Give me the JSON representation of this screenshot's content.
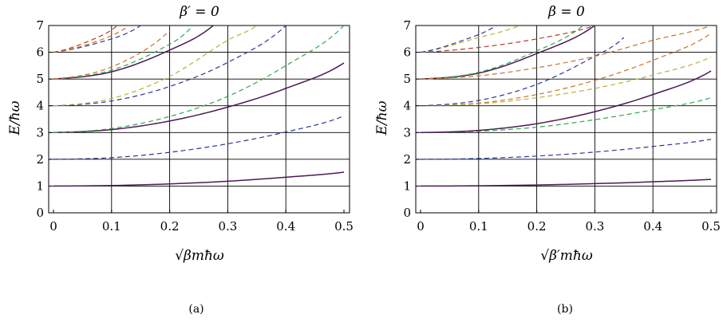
{
  "panels": [
    {
      "id": "a",
      "title": "β′ = 0",
      "ylabel": "E/ħω",
      "xlabel": "√βmħω",
      "caption": "(a)"
    },
    {
      "id": "b",
      "title": "β = 0",
      "ylabel": "E/ħω",
      "xlabel": "√β′mħω",
      "caption": "(b)"
    }
  ],
  "chart_data": [
    {
      "type": "line",
      "title": "β′ = 0",
      "xlabel": "√βmħω",
      "ylabel": "E/ħω",
      "xlim": [
        0,
        0.5
      ],
      "ylim": [
        0,
        7
      ],
      "grid": true,
      "x_ticks": [
        "0",
        "0.1",
        "0.2",
        "0.3",
        "0.4",
        "0.5"
      ],
      "y_ticks": [
        "0",
        "1",
        "2",
        "3",
        "4",
        "5",
        "6",
        "7"
      ],
      "colors": {
        "solid": "#4b1a55",
        "blue": "#2b3a9a",
        "green": "#2ea84a",
        "olive": "#b8b23a",
        "orange": "#c8742a",
        "red": "#b83a2a"
      },
      "series": [
        {
          "style": "solid",
          "color": "#4b1a55",
          "E0": 1,
          "x": [
            0,
            0.1,
            0.2,
            0.3,
            0.4,
            0.5
          ],
          "y": [
            1.0,
            1.02,
            1.08,
            1.18,
            1.33,
            1.52
          ]
        },
        {
          "style": "dashed",
          "color": "#2b3a9a",
          "E0": 2,
          "x": [
            0,
            0.1,
            0.2,
            0.3,
            0.4,
            0.5
          ],
          "y": [
            2.0,
            2.06,
            2.26,
            2.58,
            3.02,
            3.62
          ]
        },
        {
          "style": "solid",
          "color": "#4b1a55",
          "E0": 3,
          "x": [
            0,
            0.1,
            0.2,
            0.3,
            0.4,
            0.5
          ],
          "y": [
            3.0,
            3.11,
            3.43,
            3.95,
            4.65,
            5.6
          ]
        },
        {
          "style": "dashed",
          "color": "#2ea84a",
          "E0": 3,
          "x": [
            0,
            0.1,
            0.2,
            0.3,
            0.4,
            0.5
          ],
          "y": [
            3.0,
            3.15,
            3.6,
            4.35,
            5.5,
            7.0
          ]
        },
        {
          "style": "dashed",
          "color": "#2b3a9a",
          "E0": 4,
          "x": [
            0,
            0.1,
            0.2,
            0.3,
            0.4
          ],
          "y": [
            4.0,
            4.18,
            4.72,
            5.62,
            7.0
          ]
        },
        {
          "style": "dashed",
          "color": "#b8b23a",
          "E0": 4,
          "x": [
            0,
            0.1,
            0.2,
            0.3,
            0.35
          ],
          "y": [
            4.0,
            4.27,
            5.1,
            6.45,
            7.0
          ]
        },
        {
          "style": "solid",
          "color": "#4b1a55",
          "E0": 5,
          "x": [
            0,
            0.1,
            0.2,
            0.275
          ],
          "y": [
            5.0,
            5.27,
            6.08,
            7.0
          ]
        },
        {
          "style": "dashed",
          "color": "#2ea84a",
          "E0": 5,
          "x": [
            0,
            0.1,
            0.2,
            0.24
          ],
          "y": [
            5.0,
            5.33,
            6.3,
            7.0
          ]
        },
        {
          "style": "dashed",
          "color": "#c8742a",
          "E0": 5,
          "x": [
            0,
            0.1,
            0.2
          ],
          "y": [
            5.0,
            5.45,
            6.8
          ]
        },
        {
          "style": "dashed",
          "color": "#2b3a9a",
          "E0": 6,
          "x": [
            0,
            0.1,
            0.15
          ],
          "y": [
            6.0,
            6.5,
            7.0
          ]
        },
        {
          "style": "dashed",
          "color": "#c8742a",
          "E0": 6,
          "x": [
            0,
            0.08,
            0.13
          ],
          "y": [
            6.0,
            6.45,
            7.0
          ]
        },
        {
          "style": "dashed",
          "color": "#b83a2a",
          "E0": 6,
          "x": [
            0,
            0.07,
            0.11
          ],
          "y": [
            6.0,
            6.5,
            7.0
          ]
        }
      ]
    },
    {
      "type": "line",
      "title": "β = 0",
      "xlabel": "√β′mħω",
      "ylabel": "E/ħω",
      "xlim": [
        0,
        0.5
      ],
      "ylim": [
        0,
        7
      ],
      "grid": true,
      "x_ticks": [
        "0",
        "0.1",
        "0.2",
        "0.3",
        "0.4",
        "0.5"
      ],
      "y_ticks": [
        "0",
        "1",
        "2",
        "3",
        "4",
        "5",
        "6",
        "7"
      ],
      "colors": {
        "solid": "#4b1a55",
        "blue": "#2b3a9a",
        "green": "#2ea84a",
        "olive": "#b8b23a",
        "orange": "#c8742a",
        "red": "#b83a2a"
      },
      "series": [
        {
          "style": "solid",
          "color": "#4b1a55",
          "E0": 1,
          "x": [
            0,
            0.1,
            0.2,
            0.3,
            0.4,
            0.5
          ],
          "y": [
            1.0,
            1.01,
            1.04,
            1.09,
            1.16,
            1.25
          ]
        },
        {
          "style": "dashed",
          "color": "#2b3a9a",
          "E0": 2,
          "x": [
            0,
            0.1,
            0.2,
            0.3,
            0.4,
            0.5
          ],
          "y": [
            2.0,
            2.03,
            2.12,
            2.27,
            2.48,
            2.75
          ]
        },
        {
          "style": "dashed",
          "color": "#2ea84a",
          "E0": 3,
          "x": [
            0,
            0.1,
            0.2,
            0.3,
            0.4,
            0.5
          ],
          "y": [
            3.0,
            3.05,
            3.2,
            3.48,
            3.85,
            4.3
          ]
        },
        {
          "style": "solid",
          "color": "#4b1a55",
          "E0": 3,
          "x": [
            0,
            0.1,
            0.2,
            0.3,
            0.4,
            0.5
          ],
          "y": [
            3.0,
            3.08,
            3.33,
            3.78,
            4.42,
            5.3
          ]
        },
        {
          "style": "dashed",
          "color": "#c8742a",
          "E0": 4,
          "x": [
            0,
            0.1,
            0.2,
            0.3,
            0.4,
            0.5
          ],
          "y": [
            4.0,
            4.1,
            4.42,
            4.95,
            5.7,
            6.7
          ]
        },
        {
          "style": "dashed",
          "color": "#b8b23a",
          "E0": 4,
          "x": [
            0,
            0.1,
            0.2,
            0.3,
            0.4,
            0.5
          ],
          "y": [
            4.0,
            4.07,
            4.3,
            4.65,
            5.15,
            5.82
          ]
        },
        {
          "style": "dashed",
          "color": "#2b3a9a",
          "E0": 4,
          "x": [
            0,
            0.1,
            0.2,
            0.3,
            0.35
          ],
          "y": [
            4.0,
            4.2,
            4.8,
            5.85,
            6.55
          ]
        },
        {
          "style": "solid",
          "color": "#4b1a55",
          "E0": 5,
          "x": [
            0,
            0.1,
            0.2,
            0.3
          ],
          "y": [
            5.0,
            5.22,
            5.95,
            7.0
          ]
        },
        {
          "style": "dashed",
          "color": "#2ea84a",
          "E0": 5,
          "x": [
            0,
            0.1,
            0.2,
            0.28
          ],
          "y": [
            5.0,
            5.25,
            6.05,
            7.0
          ]
        },
        {
          "style": "dashed",
          "color": "#c8742a",
          "E0": 5,
          "x": [
            0,
            0.1,
            0.2,
            0.3,
            0.4,
            0.5
          ],
          "y": [
            5.0,
            5.12,
            5.42,
            5.85,
            6.45,
            7.0
          ]
        },
        {
          "style": "dashed",
          "color": "#b83a2a",
          "E0": 6,
          "x": [
            0,
            0.1,
            0.2,
            0.3
          ],
          "y": [
            6.0,
            6.18,
            6.5,
            7.0
          ]
        },
        {
          "style": "dashed",
          "color": "#b8b23a",
          "E0": 6,
          "x": [
            0,
            0.1,
            0.17
          ],
          "y": [
            6.0,
            6.55,
            7.0
          ]
        },
        {
          "style": "dashed",
          "color": "#2b3a9a",
          "E0": 6,
          "x": [
            0,
            0.08,
            0.13
          ],
          "y": [
            6.0,
            6.5,
            7.0
          ]
        }
      ]
    }
  ]
}
